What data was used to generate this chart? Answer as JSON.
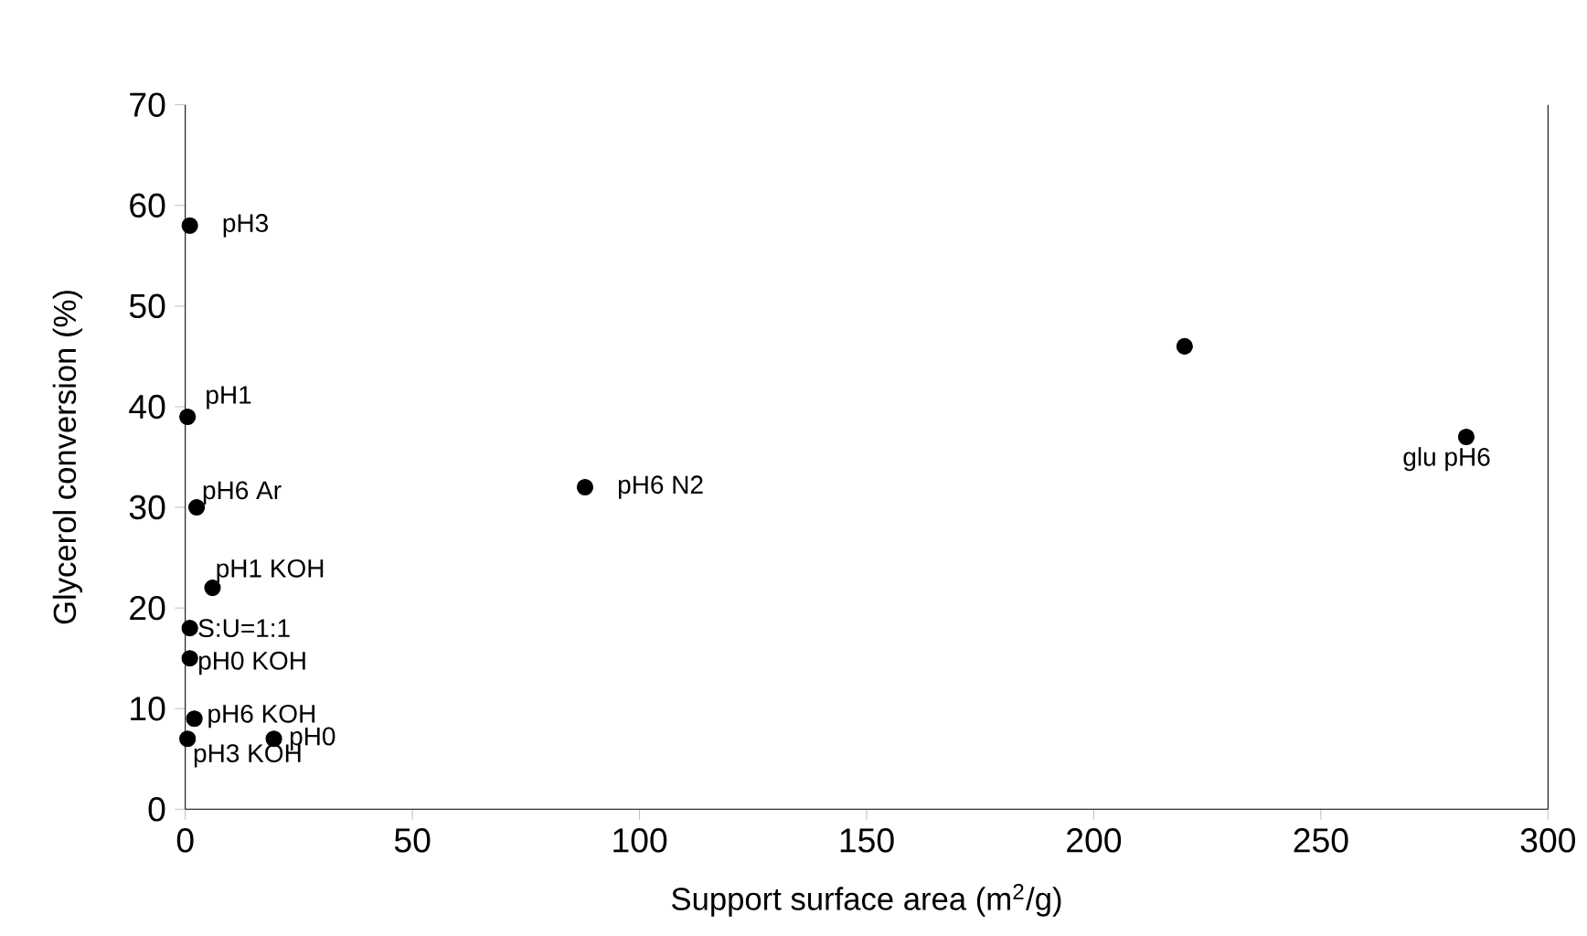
{
  "chart_data": {
    "type": "scatter",
    "xlabel": "Support surface area (m$^{2}$/g)",
    "ylabel": "Glycerol conversion (%)",
    "x": [
      1,
      0.5,
      2.5,
      6,
      1,
      1,
      2,
      0.5,
      19.5,
      88,
      220,
      282
    ],
    "series": [
      {
        "color": "#000000",
        "values": [
          58,
          39,
          30,
          22,
          18,
          15,
          9,
          7,
          7,
          32,
          46,
          37
        ]
      }
    ],
    "marker": "circle",
    "grid": false,
    "xlim": [
      0,
      300
    ],
    "xticks": [
      0,
      50,
      100,
      150,
      200,
      250,
      300
    ],
    "ylim": [
      0,
      70
    ],
    "yticks": [
      0,
      10,
      20,
      30,
      40,
      50,
      60,
      70
    ],
    "annotations": [
      {
        "text": "pH3",
        "x": 1,
        "y": 58
      },
      {
        "text": "pH1",
        "x": 0.5,
        "y": 39
      },
      {
        "text": "pH6 Ar",
        "x": 2.5,
        "y": 30
      },
      {
        "text": "pH1 KOH",
        "x": 6,
        "y": 22
      },
      {
        "text": "S:U=1:1",
        "x": 1,
        "y": 18
      },
      {
        "text": "pH0 KOH",
        "x": 1,
        "y": 15
      },
      {
        "text": "pH6 KOH",
        "x": 2,
        "y": 9
      },
      {
        "text": "pH3 KOH",
        "x": 0.5,
        "y": 7
      },
      {
        "text": "pH0",
        "x": 19.5,
        "y": 7
      },
      {
        "text": "pH6 N2",
        "x": 88,
        "y": 32
      },
      {
        "text": "glu pH6",
        "x": 282,
        "y": 37
      }
    ]
  }
}
